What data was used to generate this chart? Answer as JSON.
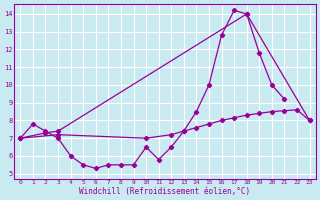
{
  "background_color": "#c8eaf0",
  "grid_color": "#ffffff",
  "line_color": "#990099",
  "xlabel": "Windchill (Refroidissement éolien,°C)",
  "xlim_min": -0.5,
  "xlim_max": 23.5,
  "ylim_min": 4.7,
  "ylim_max": 14.55,
  "yticks": [
    5,
    6,
    7,
    8,
    9,
    10,
    11,
    12,
    13,
    14
  ],
  "xticks": [
    0,
    1,
    2,
    3,
    4,
    5,
    6,
    7,
    8,
    9,
    10,
    11,
    12,
    13,
    14,
    15,
    16,
    17,
    18,
    19,
    20,
    21,
    22,
    23
  ],
  "series": [
    {
      "x": [
        0,
        1,
        2,
        3,
        4,
        5,
        6,
        7,
        8,
        9,
        10,
        11,
        12,
        13,
        14,
        15,
        16,
        17,
        18,
        19,
        20,
        21
      ],
      "y": [
        7.0,
        7.8,
        7.4,
        7.0,
        6.0,
        5.5,
        5.3,
        5.5,
        5.5,
        5.5,
        6.5,
        5.8,
        6.5,
        7.4,
        8.5,
        10.0,
        12.8,
        14.2,
        14.0,
        11.8,
        10.0,
        9.2
      ]
    },
    {
      "x": [
        0,
        2,
        3,
        18,
        23
      ],
      "y": [
        7.0,
        7.3,
        7.4,
        14.0,
        8.0
      ]
    },
    {
      "x": [
        0,
        3,
        10,
        12,
        13,
        14,
        15,
        16,
        17,
        18,
        19,
        20,
        21,
        22,
        23
      ],
      "y": [
        7.0,
        7.2,
        7.0,
        7.2,
        7.4,
        7.6,
        7.8,
        8.0,
        8.15,
        8.3,
        8.4,
        8.5,
        8.55,
        8.6,
        8.0
      ]
    }
  ]
}
